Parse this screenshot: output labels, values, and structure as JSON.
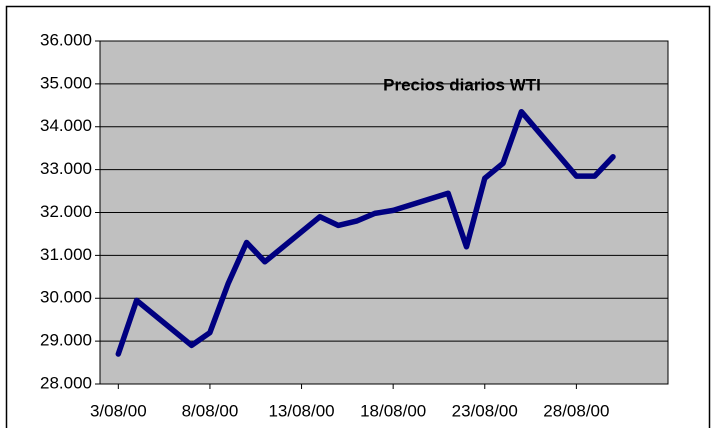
{
  "chart_data": {
    "type": "line",
    "title": "Precios diarios WTI",
    "x": [
      "2000-08-03",
      "2000-08-04",
      "2000-08-07",
      "2000-08-08",
      "2000-08-09",
      "2000-08-10",
      "2000-08-11",
      "2000-08-14",
      "2000-08-15",
      "2000-08-16",
      "2000-08-17",
      "2000-08-18",
      "2000-08-21",
      "2000-08-22",
      "2000-08-23",
      "2000-08-24",
      "2000-08-25",
      "2000-08-28",
      "2000-08-29",
      "2000-08-30"
    ],
    "series": [
      {
        "name": "WTI",
        "color": "#000080",
        "values": [
          28.7,
          29.95,
          28.9,
          29.2,
          30.35,
          31.3,
          30.85,
          31.9,
          31.7,
          31.8,
          31.98,
          32.05,
          32.45,
          31.2,
          32.8,
          33.15,
          34.35,
          32.85,
          32.85,
          33.3
        ]
      }
    ],
    "xlim": [
      "2000-08-02",
      "2000-09-02"
    ],
    "xticks": [
      {
        "value": "2000-08-03",
        "label": "3/08/00"
      },
      {
        "value": "2000-08-08",
        "label": "8/08/00"
      },
      {
        "value": "2000-08-13",
        "label": "13/08/00"
      },
      {
        "value": "2000-08-18",
        "label": "18/08/00"
      },
      {
        "value": "2000-08-23",
        "label": "23/08/00"
      },
      {
        "value": "2000-08-28",
        "label": "28/08/00"
      }
    ],
    "ylim": [
      28,
      36
    ],
    "yticks": [
      {
        "value": 28,
        "label": "28.000"
      },
      {
        "value": 29,
        "label": "29.000"
      },
      {
        "value": 30,
        "label": "30.000"
      },
      {
        "value": 31,
        "label": "31.000"
      },
      {
        "value": 32,
        "label": "32.000"
      },
      {
        "value": 33,
        "label": "33.000"
      },
      {
        "value": 34,
        "label": "34.000"
      },
      {
        "value": 35,
        "label": "35.000"
      },
      {
        "value": 36,
        "label": "36.000"
      }
    ],
    "grid": true,
    "plot_background": "#c0c0c0"
  }
}
